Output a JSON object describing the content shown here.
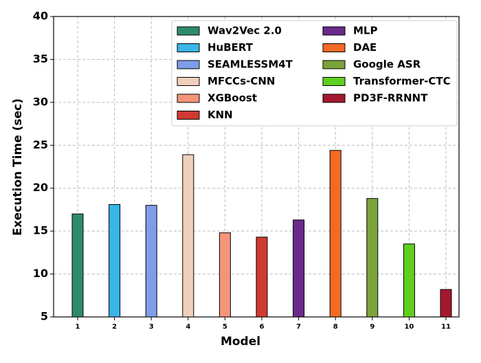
{
  "chart_data": {
    "type": "bar",
    "xlabel": "Model",
    "ylabel": "Execution Time (sec)",
    "categories": [
      "1",
      "2",
      "3",
      "4",
      "5",
      "6",
      "7",
      "8",
      "9",
      "10",
      "11"
    ],
    "series": [
      {
        "name": "Wav2Vec 2.0",
        "color": "#2e8b6a",
        "values": [
          17.0,
          null,
          null,
          null,
          null,
          null,
          null,
          null,
          null,
          null,
          null
        ]
      },
      {
        "name": "HuBERT",
        "color": "#3bb4e8",
        "values": [
          null,
          18.1,
          null,
          null,
          null,
          null,
          null,
          null,
          null,
          null,
          null
        ]
      },
      {
        "name": "SEAMLESSM4T",
        "color": "#7f9de8",
        "values": [
          null,
          null,
          18.0,
          null,
          null,
          null,
          null,
          null,
          null,
          null,
          null
        ]
      },
      {
        "name": "MFCCs-CNN",
        "color": "#f0cfbb",
        "values": [
          null,
          null,
          null,
          23.9,
          null,
          null,
          null,
          null,
          null,
          null,
          null
        ]
      },
      {
        "name": "XGBoost",
        "color": "#f4957a",
        "values": [
          null,
          null,
          null,
          null,
          14.8,
          null,
          null,
          null,
          null,
          null,
          null
        ]
      },
      {
        "name": "KNN",
        "color": "#d03a32",
        "values": [
          null,
          null,
          null,
          null,
          null,
          14.3,
          null,
          null,
          null,
          null,
          null
        ]
      },
      {
        "name": "MLP",
        "color": "#6a2a8a",
        "values": [
          null,
          null,
          null,
          null,
          null,
          null,
          16.3,
          null,
          null,
          null,
          null
        ]
      },
      {
        "name": "DAE",
        "color": "#f26a24",
        "values": [
          null,
          null,
          null,
          null,
          null,
          null,
          null,
          24.4,
          null,
          null,
          null
        ]
      },
      {
        "name": "Google ASR",
        "color": "#7ba33a",
        "values": [
          null,
          null,
          null,
          null,
          null,
          null,
          null,
          null,
          18.8,
          null,
          null
        ]
      },
      {
        "name": "Transformer-CTC",
        "color": "#5fcf1f",
        "values": [
          null,
          null,
          null,
          null,
          null,
          null,
          null,
          null,
          null,
          13.5,
          null
        ]
      },
      {
        "name": "PD3F-RRNNT",
        "color": "#a3182e",
        "values": [
          null,
          null,
          null,
          null,
          null,
          null,
          null,
          null,
          null,
          null,
          8.2
        ]
      }
    ],
    "ylim": [
      5,
      40
    ],
    "yticks": [
      5,
      10,
      15,
      20,
      25,
      30,
      35,
      40
    ],
    "grid": true,
    "legend": "upper right"
  }
}
